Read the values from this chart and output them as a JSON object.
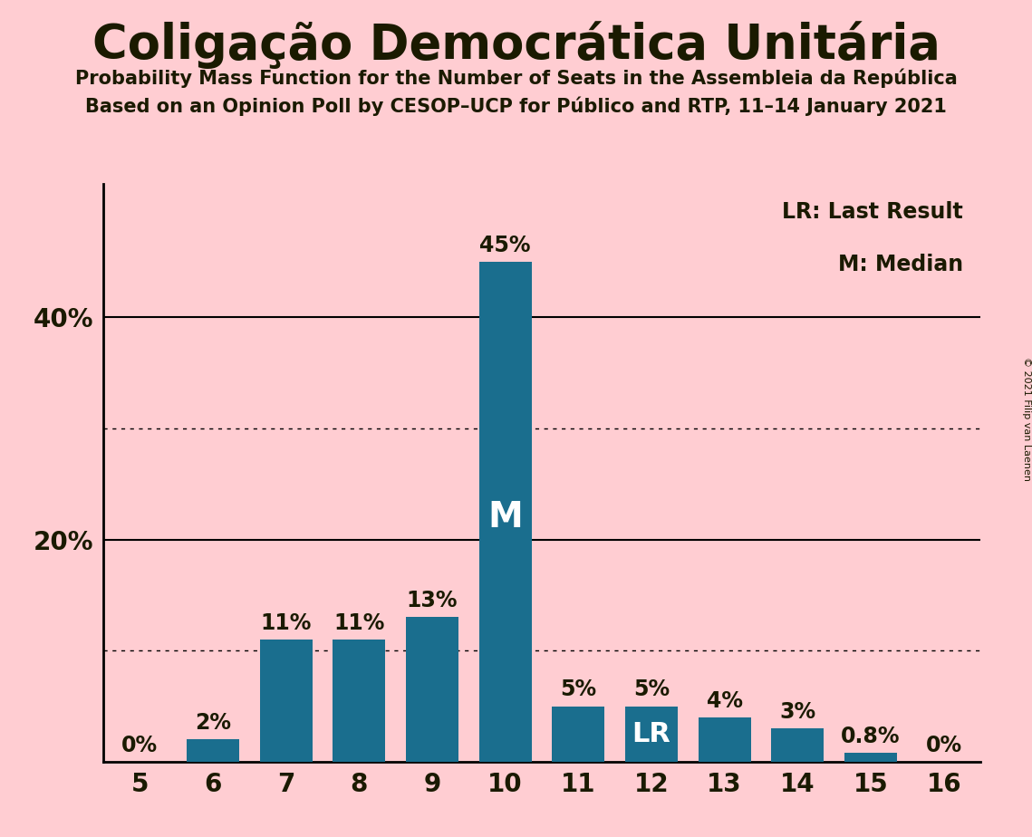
{
  "title": "Coligação Democrática Unitária",
  "subtitle1": "Probability Mass Function for the Number of Seats in the Assembleia da República",
  "subtitle2": "Based on an Opinion Poll by CESOP–UCP for Público and RTP, 11–14 January 2021",
  "copyright": "© 2021 Filip van Laenen",
  "categories": [
    5,
    6,
    7,
    8,
    9,
    10,
    11,
    12,
    13,
    14,
    15,
    16
  ],
  "values": [
    0,
    2,
    11,
    11,
    13,
    45,
    5,
    5,
    4,
    3,
    0.8,
    0
  ],
  "bar_color": "#1a6e8e",
  "background_color": "#FFCDD2",
  "text_color": "#1a1a00",
  "median_seat": 10,
  "lr_seat": 12,
  "solid_gridlines": [
    20,
    40
  ],
  "dotted_gridlines": [
    10,
    30
  ],
  "ylim": [
    0,
    52
  ],
  "legend_lr": "LR: Last Result",
  "legend_m": "M: Median",
  "bar_label_fontsize": 17,
  "axis_fontsize": 20,
  "title_fontsize": 38,
  "subtitle_fontsize": 15,
  "copyright_fontsize": 8,
  "legend_fontsize": 17,
  "median_label_fontsize": 28,
  "lr_label_fontsize": 22
}
